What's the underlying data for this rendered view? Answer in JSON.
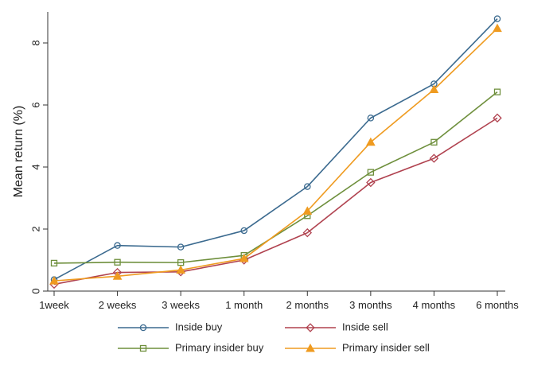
{
  "chart_data": {
    "type": "line",
    "title": "",
    "xlabel": "",
    "ylabel": "Mean return (%)",
    "categories": [
      "1week",
      "2 weeks",
      "3 weeks",
      "1 month",
      "2 months",
      "3 months",
      "4 months",
      "6 months"
    ],
    "ylim": [
      0,
      9
    ],
    "yticks": [
      0,
      2,
      4,
      6,
      8
    ],
    "grid": false,
    "legend_position": "bottom",
    "series": [
      {
        "name": "Inside buy",
        "marker": "circle",
        "color": "#3b6a8f",
        "values": [
          0.37,
          1.47,
          1.42,
          1.95,
          3.37,
          5.58,
          6.68,
          8.78
        ]
      },
      {
        "name": "Inside sell",
        "marker": "diamond",
        "color": "#b0424f",
        "values": [
          0.22,
          0.6,
          0.62,
          1.0,
          1.88,
          3.5,
          4.28,
          5.58
        ]
      },
      {
        "name": "Primary insider buy",
        "marker": "square",
        "color": "#6e8f3c",
        "values": [
          0.9,
          0.93,
          0.92,
          1.15,
          2.43,
          3.83,
          4.8,
          6.42
        ]
      },
      {
        "name": "Primary insider sell",
        "marker": "triangle",
        "color": "#ef9b20",
        "values": [
          0.33,
          0.48,
          0.68,
          1.05,
          2.58,
          4.8,
          6.5,
          8.47
        ]
      }
    ]
  }
}
